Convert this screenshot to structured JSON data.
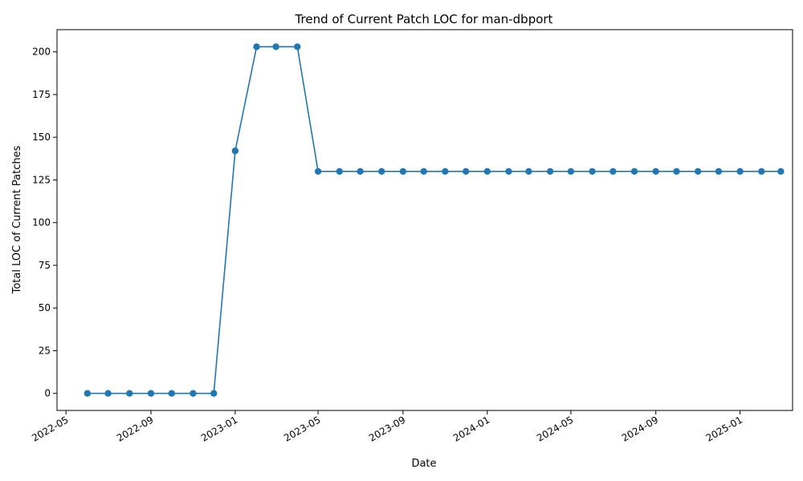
{
  "chart_data": {
    "type": "line",
    "title": "Trend of Current Patch LOC for man-dbport",
    "xlabel": "Date",
    "ylabel": "Total LOC of Current Patches",
    "x_ticks": [
      "2022-05",
      "2022-09",
      "2023-01",
      "2023-05",
      "2023-09",
      "2024-01",
      "2024-05",
      "2024-09",
      "2025-01"
    ],
    "y_ticks": [
      0,
      25,
      50,
      75,
      100,
      125,
      150,
      175,
      200
    ],
    "xlim": [
      "2022-04-18",
      "2025-03-18"
    ],
    "ylim": [
      -10,
      213
    ],
    "grid": false,
    "legend": "none",
    "series": [
      {
        "color": "#1f77b4",
        "marker": "circle",
        "points": [
          {
            "x": "2022-06-01",
            "y": 0
          },
          {
            "x": "2022-07-01",
            "y": 0
          },
          {
            "x": "2022-08-01",
            "y": 0
          },
          {
            "x": "2022-09-01",
            "y": 0
          },
          {
            "x": "2022-10-01",
            "y": 0
          },
          {
            "x": "2022-11-01",
            "y": 0
          },
          {
            "x": "2022-12-01",
            "y": 0
          },
          {
            "x": "2023-01-01",
            "y": 142
          },
          {
            "x": "2023-02-01",
            "y": 203
          },
          {
            "x": "2023-03-01",
            "y": 203
          },
          {
            "x": "2023-04-01",
            "y": 203
          },
          {
            "x": "2023-05-01",
            "y": 130
          },
          {
            "x": "2023-06-01",
            "y": 130
          },
          {
            "x": "2023-07-01",
            "y": 130
          },
          {
            "x": "2023-08-01",
            "y": 130
          },
          {
            "x": "2023-09-01",
            "y": 130
          },
          {
            "x": "2023-10-01",
            "y": 130
          },
          {
            "x": "2023-11-01",
            "y": 130
          },
          {
            "x": "2023-12-01",
            "y": 130
          },
          {
            "x": "2024-01-01",
            "y": 130
          },
          {
            "x": "2024-02-01",
            "y": 130
          },
          {
            "x": "2024-03-01",
            "y": 130
          },
          {
            "x": "2024-04-01",
            "y": 130
          },
          {
            "x": "2024-05-01",
            "y": 130
          },
          {
            "x": "2024-06-01",
            "y": 130
          },
          {
            "x": "2024-07-01",
            "y": 130
          },
          {
            "x": "2024-08-01",
            "y": 130
          },
          {
            "x": "2024-09-01",
            "y": 130
          },
          {
            "x": "2024-10-01",
            "y": 130
          },
          {
            "x": "2024-11-01",
            "y": 130
          },
          {
            "x": "2024-12-01",
            "y": 130
          },
          {
            "x": "2025-01-01",
            "y": 130
          },
          {
            "x": "2025-02-01",
            "y": 130
          },
          {
            "x": "2025-03-01",
            "y": 130
          }
        ]
      }
    ]
  }
}
